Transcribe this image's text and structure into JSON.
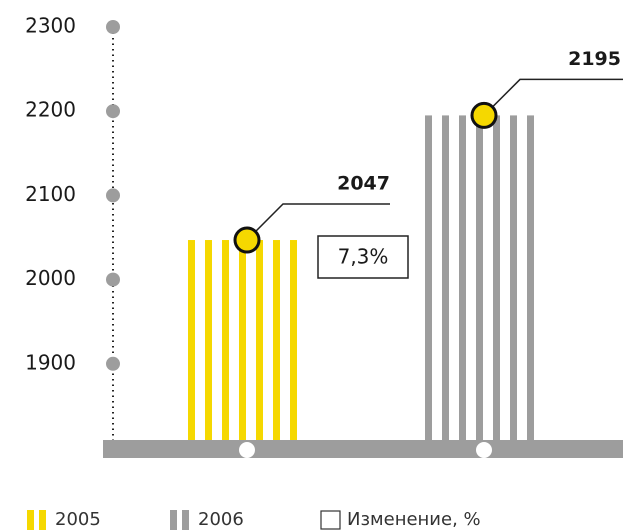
{
  "chart_data": {
    "type": "bar",
    "series": [
      {
        "name": "2005",
        "color": "#f5d800",
        "values": [
          2047
        ]
      },
      {
        "name": "2006",
        "color": "#9d9d9d",
        "values": [
          2195
        ]
      }
    ],
    "ylim": [
      1800,
      2300
    ],
    "yticks": [
      1900,
      2000,
      2100,
      2200,
      2300
    ],
    "annotation": {
      "value": 7.3,
      "label": "7,3%"
    },
    "legend_change": "Изменение, %"
  }
}
